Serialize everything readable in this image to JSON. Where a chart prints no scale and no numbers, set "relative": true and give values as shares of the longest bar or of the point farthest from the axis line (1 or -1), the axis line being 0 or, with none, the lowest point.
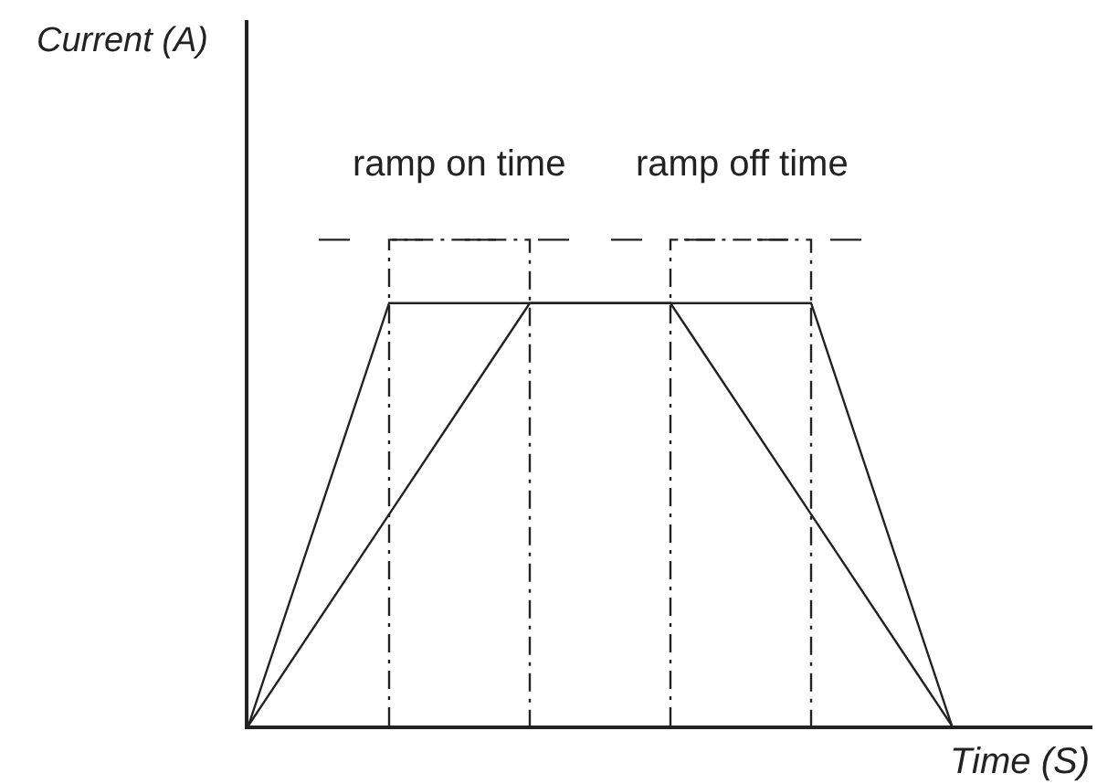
{
  "chart_data": {
    "type": "line",
    "relative": true,
    "xlabel": "Time (S)",
    "categories": [
      null,
      null,
      null,
      null,
      null,
      null
    ],
    "series": [
      {
        "color": "#222222",
        "values": [
          0,
          1,
          1,
          1,
          1,
          0
        ]
      },
      {
        "color": "#222222",
        "values": [
          0,
          0.5,
          1,
          1,
          0.5,
          0
        ]
      }
    ],
    "line_style": "solid",
    "ref_lines": [
      {
        "axis": "y",
        "value": 1.15,
        "label": null,
        "color": "#222222",
        "line_style": "dashed"
      }
    ],
    "annotations": [
      "Current (A)",
      "ramp on time",
      "ramp off time"
    ]
  }
}
